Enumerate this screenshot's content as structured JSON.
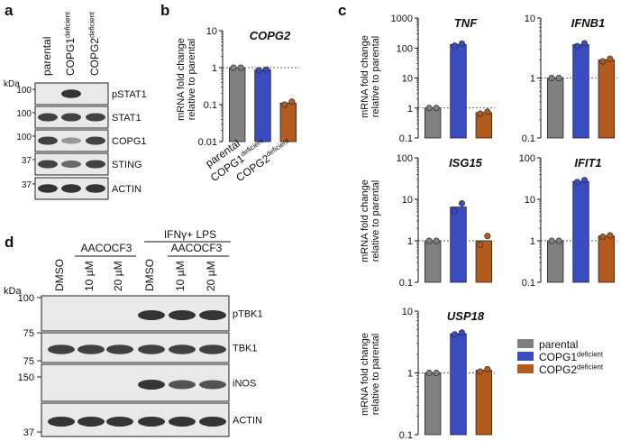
{
  "colors": {
    "parental": "#808080",
    "copg1": "#3b4cc0",
    "copg2": "#b35a1f",
    "blot_bg": "#e9e9e9",
    "band": "#2a2a2a"
  },
  "panels": {
    "a": "a",
    "b": "b",
    "c": "c",
    "d": "d"
  },
  "blot_a": {
    "kda_label": "kDa",
    "lanes": [
      {
        "main": "parental",
        "sup": ""
      },
      {
        "main": "COPG1",
        "sup": "deficient"
      },
      {
        "main": "COPG2",
        "sup": "deficient"
      }
    ],
    "rows": [
      {
        "name": "pSTAT1",
        "kda": "100",
        "bands": [
          0.0,
          1.0,
          0.0
        ]
      },
      {
        "name": "STAT1",
        "kda": "100",
        "bands": [
          0.9,
          0.9,
          0.9
        ]
      },
      {
        "name": "COPG1",
        "kda": "100",
        "bands": [
          0.9,
          0.25,
          0.9
        ]
      },
      {
        "name": "STING",
        "kda": "37",
        "bands": [
          0.9,
          0.6,
          0.9
        ]
      },
      {
        "name": "ACTIN",
        "kda": "37",
        "bands": [
          1.0,
          1.0,
          1.0
        ]
      }
    ]
  },
  "blot_d": {
    "kda_label": "kDa",
    "group1": "AACOCF3",
    "group2_top": "IFNγ+ LPS",
    "group2_sub": "AACOCF3",
    "lanes": [
      "DMSO",
      "10 µM",
      "20 µM",
      "DMSO",
      "10 µM",
      "20 µM"
    ],
    "markers": [
      "100",
      "75",
      "75",
      "150",
      "37"
    ],
    "rows": [
      {
        "name": "pTBK1",
        "bands": [
          0,
          0,
          0,
          1.0,
          1.0,
          1.0
        ]
      },
      {
        "name": "TBK1",
        "bands": [
          0.9,
          0.9,
          0.9,
          0.9,
          0.9,
          0.9
        ]
      },
      {
        "name": "iNOS",
        "bands": [
          0,
          0,
          0,
          1.0,
          0.75,
          0.75
        ]
      },
      {
        "name": "ACTIN",
        "bands": [
          1.0,
          1.0,
          1.0,
          1.0,
          1.0,
          1.0
        ]
      }
    ]
  },
  "legend": [
    {
      "main": "parental",
      "sup": ""
    },
    {
      "main": "COPG1",
      "sup": "deficient"
    },
    {
      "main": "COPG2",
      "sup": "deficient"
    }
  ],
  "ylabel": [
    "mRNA fold change",
    "relative to parental"
  ],
  "chart_data": [
    {
      "type": "bar",
      "id": "COPG2",
      "title": "COPG2",
      "scale": "log",
      "ylim": [
        0.01,
        10
      ],
      "ticks": [
        "10",
        "1",
        "0.1",
        "0.01"
      ],
      "categories": [
        {
          "main": "parental",
          "sup": ""
        },
        {
          "main": "COPG1",
          "sup": "deficient"
        },
        {
          "main": "COPG2",
          "sup": "deficient"
        }
      ],
      "values": [
        1.0,
        0.87,
        0.11
      ],
      "points": [
        [
          1.0,
          1.0
        ],
        [
          0.85,
          0.89
        ],
        [
          0.1,
          0.12
        ]
      ]
    },
    {
      "type": "bar",
      "id": "TNF",
      "title": "TNF",
      "scale": "log",
      "ylim": [
        0.1,
        1000
      ],
      "ticks": [
        "1000",
        "100",
        "10",
        "1",
        "0.1"
      ],
      "values": [
        1.0,
        130,
        0.7
      ],
      "points": [
        [
          1.0,
          1.0
        ],
        [
          120,
          140
        ],
        [
          0.65,
          0.75
        ]
      ]
    },
    {
      "type": "bar",
      "id": "IFNB1",
      "title": "IFNB1",
      "scale": "log",
      "ylim": [
        0.1,
        10
      ],
      "ticks": [
        "10",
        "1",
        "0.1"
      ],
      "values": [
        1.0,
        3.6,
        2.0
      ],
      "points": [
        [
          1.0,
          1.0
        ],
        [
          3.4,
          3.8
        ],
        [
          1.9,
          2.1
        ]
      ]
    },
    {
      "type": "bar",
      "id": "ISG15",
      "title": "ISG15",
      "scale": "log",
      "ylim": [
        0.1,
        100
      ],
      "ticks": [
        "100",
        "10",
        "1",
        "0.1"
      ],
      "values": [
        1.0,
        6.5,
        1.0
      ],
      "points": [
        [
          1.0,
          1.0
        ],
        [
          5.2,
          8.0
        ],
        [
          0.8,
          1.3
        ]
      ]
    },
    {
      "type": "bar",
      "id": "IFIT1",
      "title": "IFIT1",
      "scale": "log",
      "ylim": [
        0.1,
        100
      ],
      "ticks": [
        "100",
        "10",
        "1",
        "0.1"
      ],
      "values": [
        1.0,
        27,
        1.3
      ],
      "points": [
        [
          1.0,
          1.0
        ],
        [
          26,
          29
        ],
        [
          1.25,
          1.35
        ]
      ]
    },
    {
      "type": "bar",
      "id": "USP18",
      "title": "USP18",
      "scale": "log",
      "ylim": [
        0.1,
        10
      ],
      "ticks": [
        "10",
        "1",
        "0.1"
      ],
      "values": [
        1.0,
        4.3,
        1.1
      ],
      "points": [
        [
          1.0,
          1.0
        ],
        [
          4.2,
          4.5
        ],
        [
          1.05,
          1.15
        ]
      ]
    }
  ]
}
